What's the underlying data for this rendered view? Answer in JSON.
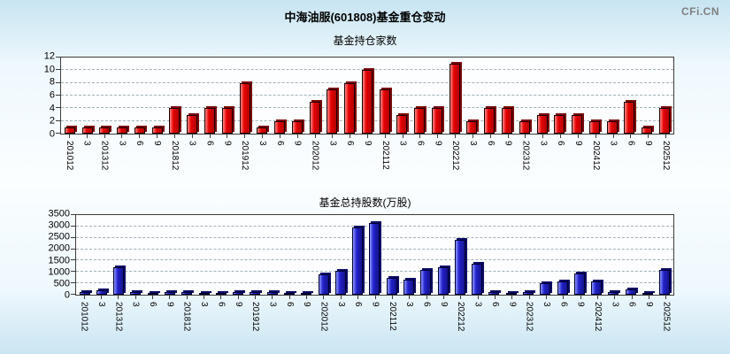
{
  "header": {
    "title": "中海油服(601808)基金重仓变动",
    "logo": "CFi.CN"
  },
  "chart_data": [
    {
      "type": "bar",
      "title": "基金持仓家数",
      "categories": [
        "201012",
        "3",
        "201312",
        "3",
        "6",
        "9",
        "201812",
        "3",
        "6",
        "9",
        "201912",
        "3",
        "6",
        "9",
        "202012",
        "3",
        "6",
        "9",
        "202112",
        "3",
        "6",
        "9",
        "202212",
        "3",
        "6",
        "9",
        "202312",
        "3",
        "6",
        "9",
        "202412",
        "3",
        "6",
        "9",
        "202512"
      ],
      "values": [
        1,
        1,
        1,
        1,
        1,
        1,
        4,
        3,
        4,
        4,
        8,
        1,
        2,
        2,
        5,
        7,
        8,
        10,
        7,
        3,
        4,
        4,
        11,
        2,
        4,
        4,
        2,
        3,
        3,
        3,
        2,
        2,
        5,
        1,
        4
      ],
      "xlabel": "",
      "ylabel": "",
      "ylim": [
        0,
        12
      ],
      "yticks": [
        0,
        2,
        4,
        6,
        8,
        10,
        12
      ],
      "grid": true,
      "legend_position": "none",
      "colors": {
        "bar": "#e60000",
        "bar_highlight": "#ff8a8a",
        "bar_dark": "#b00505",
        "bar_side": "#7a0a0a",
        "bar_border": "#1c0000"
      }
    },
    {
      "type": "bar",
      "title": "基金总持股数(万股)",
      "categories": [
        "201012",
        "3",
        "201312",
        "3",
        "6",
        "9",
        "201812",
        "3",
        "6",
        "9",
        "201912",
        "3",
        "6",
        "9",
        "202012",
        "3",
        "6",
        "9",
        "202112",
        "3",
        "6",
        "9",
        "202212",
        "3",
        "6",
        "9",
        "202312",
        "3",
        "6",
        "9",
        "202412",
        "3",
        "6",
        "9",
        "202512"
      ],
      "values": [
        100,
        200,
        1200,
        100,
        50,
        100,
        100,
        60,
        70,
        100,
        120,
        100,
        50,
        60,
        900,
        1050,
        2950,
        3150,
        750,
        650,
        1100,
        1200,
        2400,
        1350,
        100,
        50,
        100,
        500,
        600,
        950,
        600,
        100,
        250,
        50,
        1100
      ],
      "xlabel": "",
      "ylabel": "",
      "ylim": [
        0,
        3500
      ],
      "yticks": [
        0,
        500,
        1000,
        1500,
        2000,
        2500,
        3000,
        3500
      ],
      "grid": true,
      "legend_position": "none",
      "colors": {
        "bar": "#2222cc",
        "bar_highlight": "#8c96ff",
        "bar_dark": "#14148c",
        "bar_side": "#0b0b66",
        "bar_border": "#000030"
      }
    }
  ]
}
